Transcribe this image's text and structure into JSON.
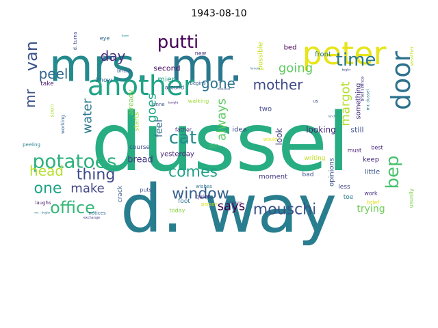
{
  "title": "1943-08-10",
  "words": [
    {
      "text": "dussel",
      "color": "#27ad81"
    },
    {
      "text": "d. way",
      "color": "#287d8e"
    },
    {
      "text": "mrs.",
      "color": "#238a8d"
    },
    {
      "text": "mr.",
      "color": "#2a788e"
    },
    {
      "text": "peter",
      "color": "#e7e419"
    },
    {
      "text": "another",
      "color": "#20a386"
    },
    {
      "text": "door",
      "color": "#2c728e"
    },
    {
      "text": "putti",
      "color": "#440154"
    },
    {
      "text": "time",
      "color": "#2a788e"
    },
    {
      "text": "van",
      "color": "#3b528b"
    },
    {
      "text": "day",
      "color": "#472d7b"
    },
    {
      "text": "peel",
      "color": "#31688e"
    },
    {
      "text": "going",
      "color": "#5ec962"
    },
    {
      "text": "mother",
      "color": "#3e4989"
    },
    {
      "text": "gone",
      "color": "#2c728e"
    },
    {
      "text": "mr",
      "color": "#3b528b"
    },
    {
      "text": "water",
      "color": "#2a788e"
    },
    {
      "text": "goes",
      "color": "#22a884"
    },
    {
      "text": "always",
      "color": "#5ec962"
    },
    {
      "text": "margot",
      "color": "#b5de2b"
    },
    {
      "text": "cat",
      "color": "#238a8d"
    },
    {
      "text": "potatoes",
      "color": "#2db27d"
    },
    {
      "text": "head",
      "color": "#b5de2b"
    },
    {
      "text": "thing",
      "color": "#3e4989"
    },
    {
      "text": "comes",
      "color": "#1fa187"
    },
    {
      "text": "bep",
      "color": "#4ac16d"
    },
    {
      "text": "one",
      "color": "#20a386"
    },
    {
      "text": "make",
      "color": "#414487"
    },
    {
      "text": "window",
      "color": "#355f8d"
    },
    {
      "text": "office",
      "color": "#35b779"
    },
    {
      "text": "says",
      "color": "#440154"
    },
    {
      "text": "mouschi",
      "color": "#3b528b"
    },
    {
      "text": "feel",
      "color": "#31688e"
    },
    {
      "text": "bread",
      "color": "#443983"
    },
    {
      "text": "trying",
      "color": "#6ece58"
    },
    {
      "text": "look",
      "color": "#443983"
    },
    {
      "text": "looking",
      "color": "#482878"
    },
    {
      "text": "second",
      "color": "#471164"
    },
    {
      "text": "miep",
      "color": "#1f9e89"
    },
    {
      "text": "bed",
      "color": "#440154"
    },
    {
      "text": "front",
      "color": "#2a788e"
    },
    {
      "text": "still",
      "color": "#3b528b"
    },
    {
      "text": "two",
      "color": "#404688"
    },
    {
      "text": "idea",
      "color": "#3e4989"
    },
    {
      "text": "moment",
      "color": "#443983"
    },
    {
      "text": "keep",
      "color": "#472c7a"
    },
    {
      "text": "little",
      "color": "#3b528b"
    },
    {
      "text": "something",
      "color": "#46307e"
    },
    {
      "text": "opinions",
      "color": "#3a548c"
    },
    {
      "text": "possible",
      "color": "#c8e020"
    },
    {
      "text": "starts",
      "color": "#a5db36"
    },
    {
      "text": "already",
      "color": "#7ad151"
    },
    {
      "text": "yesterday",
      "color": "#482475"
    },
    {
      "text": "course",
      "color": "#3e4a89"
    },
    {
      "text": "crack",
      "color": "#365d8d"
    },
    {
      "text": "puts",
      "color": "#3f4889"
    },
    {
      "text": "know",
      "color": "#2e6e8e"
    },
    {
      "text": "take",
      "color": "#481b6d"
    },
    {
      "text": "walking",
      "color": "#a0da39"
    },
    {
      "text": "new",
      "color": "#46327e"
    },
    {
      "text": "around",
      "color": "#3c4f8a"
    },
    {
      "text": "begins",
      "color": "#32658e"
    },
    {
      "text": "air",
      "color": "#4ac16d"
    },
    {
      "text": "father",
      "color": "#472a7a"
    },
    {
      "text": "foot",
      "color": "#2c718e"
    },
    {
      "text": "quiet",
      "color": "#482677"
    },
    {
      "text": "today",
      "color": "#8bd646"
    },
    {
      "text": "writing",
      "color": "#c0df25"
    },
    {
      "text": "bad",
      "color": "#3e4c8a"
    },
    {
      "text": "less",
      "color": "#404588"
    },
    {
      "text": "toe",
      "color": "#29798e"
    },
    {
      "text": "work",
      "color": "#46327e"
    },
    {
      "text": "brief",
      "color": "#e2e418"
    },
    {
      "text": "must",
      "color": "#482071"
    },
    {
      "text": "best",
      "color": "#482878"
    },
    {
      "text": "usually",
      "color": "#81d34d"
    },
    {
      "text": "eye",
      "color": "#31688e"
    },
    {
      "text": "turns",
      "color": "#3b528b"
    },
    {
      "text": "british",
      "color": "#3b528b"
    },
    {
      "text": "soon",
      "color": "#b0dd2f"
    },
    {
      "text": "working",
      "color": "#34618d"
    },
    {
      "text": "notices",
      "color": "#31688e"
    },
    {
      "text": "laughs",
      "color": "#481769"
    },
    {
      "text": "peeling",
      "color": "#277f8e"
    },
    {
      "text": "d. turns",
      "color": "#3e4a89"
    },
    {
      "text": "anne",
      "color": "#3b528b"
    },
    {
      "text": "us",
      "color": "#3e4989"
    },
    {
      "text": "would",
      "color": "#e5e419"
    },
    {
      "text": "wishes",
      "color": "#2b748e"
    },
    {
      "text": "person",
      "color": "#d8e219"
    },
    {
      "text": "exchange",
      "color": "#443a83"
    },
    {
      "text": "mr. - bogler",
      "color": "#2a768e"
    },
    {
      "text": "brief silence",
      "color": "#443a83"
    },
    {
      "text": "mr. dussel",
      "color": "#287c8e"
    },
    {
      "text": "weather",
      "color": "#c2df23"
    },
    {
      "text": "breakfast",
      "color": "#3a538b"
    },
    {
      "text": "dawn",
      "color": "#1f958b"
    },
    {
      "text": "tonight",
      "color": "#462f7e"
    },
    {
      "text": "lemons",
      "color": "#2d708e"
    },
    {
      "text": "sequence",
      "color": "#46307e"
    },
    {
      "text": "lunch",
      "color": "#38598c"
    },
    {
      "text": "bogler",
      "color": "#3f4788"
    }
  ]
}
